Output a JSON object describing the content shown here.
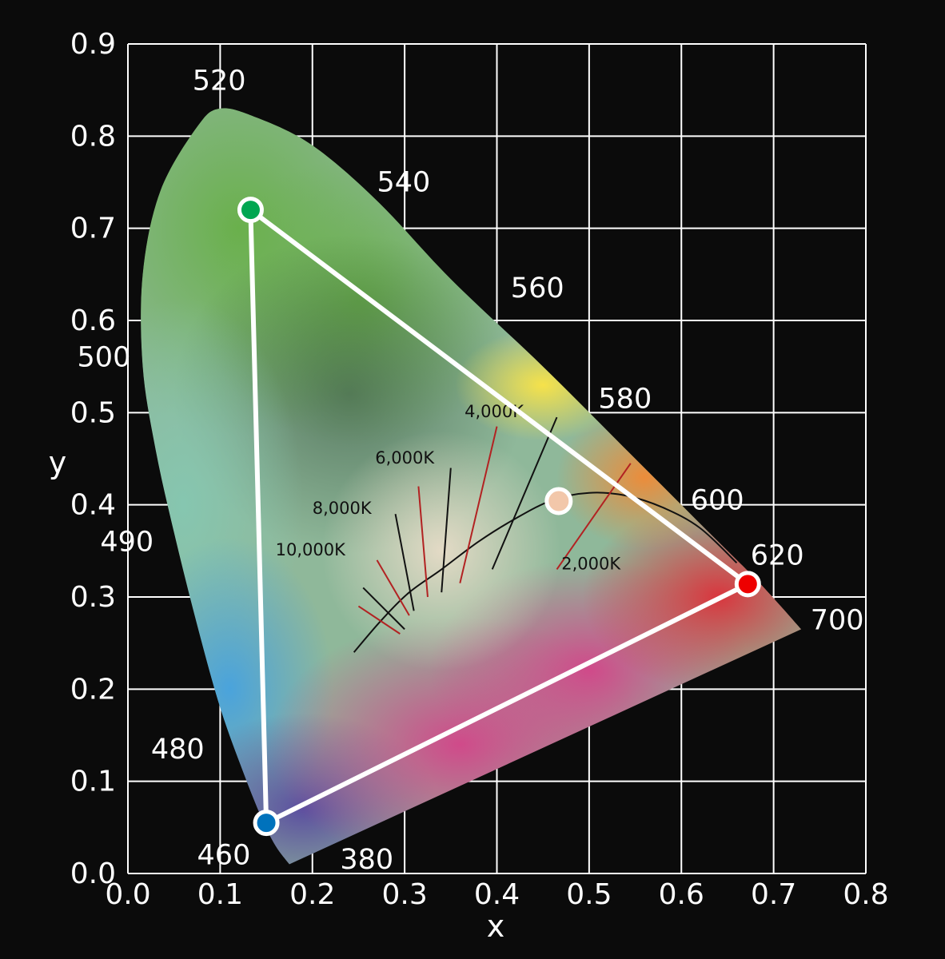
{
  "chart_data": {
    "type": "scatter",
    "xlabel": "x",
    "ylabel": "y",
    "xlim": [
      0.0,
      0.8
    ],
    "ylim": [
      0.0,
      0.9
    ],
    "x_ticks": [
      "0.0",
      "0.1",
      "0.2",
      "0.3",
      "0.4",
      "0.5",
      "0.6",
      "0.7",
      "0.8"
    ],
    "y_ticks": [
      "0.0",
      "0.1",
      "0.2",
      "0.3",
      "0.4",
      "0.5",
      "0.6",
      "0.7",
      "0.8",
      "0.9"
    ],
    "grid": true,
    "spectral_locus": [
      [
        0.175,
        0.01
      ],
      [
        0.16,
        0.03
      ],
      [
        0.145,
        0.06
      ],
      [
        0.125,
        0.11
      ],
      [
        0.1,
        0.18
      ],
      [
        0.075,
        0.27
      ],
      [
        0.05,
        0.37
      ],
      [
        0.03,
        0.46
      ],
      [
        0.016,
        0.55
      ],
      [
        0.016,
        0.65
      ],
      [
        0.035,
        0.74
      ],
      [
        0.075,
        0.81
      ],
      [
        0.1,
        0.83
      ],
      [
        0.14,
        0.82
      ],
      [
        0.2,
        0.79
      ],
      [
        0.27,
        0.73
      ],
      [
        0.35,
        0.645
      ],
      [
        0.45,
        0.55
      ],
      [
        0.55,
        0.45
      ],
      [
        0.63,
        0.37
      ],
      [
        0.685,
        0.315
      ],
      [
        0.73,
        0.265
      ]
    ],
    "wavelength_labels": [
      {
        "label": "520",
        "x": 0.07,
        "y": 0.85
      },
      {
        "label": "540",
        "x": 0.27,
        "y": 0.74
      },
      {
        "label": "560",
        "x": 0.415,
        "y": 0.625
      },
      {
        "label": "580",
        "x": 0.51,
        "y": 0.505
      },
      {
        "label": "600",
        "x": 0.61,
        "y": 0.395
      },
      {
        "label": "620",
        "x": 0.675,
        "y": 0.335
      },
      {
        "label": "700",
        "x": 0.74,
        "y": 0.265
      },
      {
        "label": "500",
        "x": -0.055,
        "y": 0.55
      },
      {
        "label": "490",
        "x": -0.03,
        "y": 0.35
      },
      {
        "label": "480",
        "x": 0.025,
        "y": 0.125
      },
      {
        "label": "460",
        "x": 0.075,
        "y": 0.01
      },
      {
        "label": "380",
        "x": 0.23,
        "y": 0.005
      }
    ],
    "gamut_triangle": [
      {
        "name": "green",
        "x": 0.133,
        "y": 0.72,
        "color": "#00a651"
      },
      {
        "name": "red",
        "x": 0.672,
        "y": 0.314,
        "color": "#ee0000"
      },
      {
        "name": "blue",
        "x": 0.15,
        "y": 0.055,
        "color": "#0072bc"
      }
    ],
    "white_point": {
      "x": 0.467,
      "y": 0.404,
      "color": "#f2c7aa"
    },
    "planckian_locus": [
      [
        0.245,
        0.24
      ],
      [
        0.275,
        0.275
      ],
      [
        0.305,
        0.305
      ],
      [
        0.34,
        0.33
      ],
      [
        0.38,
        0.36
      ],
      [
        0.42,
        0.385
      ],
      [
        0.46,
        0.405
      ],
      [
        0.5,
        0.413
      ],
      [
        0.54,
        0.41
      ],
      [
        0.58,
        0.397
      ],
      [
        0.62,
        0.375
      ],
      [
        0.66,
        0.337
      ]
    ],
    "isotherms": [
      {
        "x1": 0.255,
        "y1": 0.31,
        "x2": 0.3,
        "y2": 0.265,
        "color": "#111111"
      },
      {
        "x1": 0.25,
        "y1": 0.29,
        "x2": 0.295,
        "y2": 0.26,
        "color": "#b22222"
      },
      {
        "x1": 0.27,
        "y1": 0.34,
        "x2": 0.305,
        "y2": 0.28,
        "color": "#b22222"
      },
      {
        "x1": 0.29,
        "y1": 0.39,
        "x2": 0.31,
        "y2": 0.285,
        "color": "#111111"
      },
      {
        "x1": 0.315,
        "y1": 0.42,
        "x2": 0.325,
        "y2": 0.3,
        "color": "#b22222"
      },
      {
        "x1": 0.35,
        "y1": 0.44,
        "x2": 0.34,
        "y2": 0.305,
        "color": "#111111"
      },
      {
        "x1": 0.4,
        "y1": 0.485,
        "x2": 0.36,
        "y2": 0.315,
        "color": "#b22222"
      },
      {
        "x1": 0.465,
        "y1": 0.495,
        "x2": 0.395,
        "y2": 0.33,
        "color": "#111111"
      },
      {
        "x1": 0.545,
        "y1": 0.445,
        "x2": 0.465,
        "y2": 0.33,
        "color": "#b22222"
      }
    ],
    "cct_labels": [
      {
        "label": "10,000K",
        "x": 0.16,
        "y": 0.345
      },
      {
        "label": "8,000K",
        "x": 0.2,
        "y": 0.39
      },
      {
        "label": "6,000K",
        "x": 0.268,
        "y": 0.445
      },
      {
        "label": "4,000K",
        "x": 0.365,
        "y": 0.495
      },
      {
        "label": "2,000K",
        "x": 0.47,
        "y": 0.33
      }
    ]
  }
}
